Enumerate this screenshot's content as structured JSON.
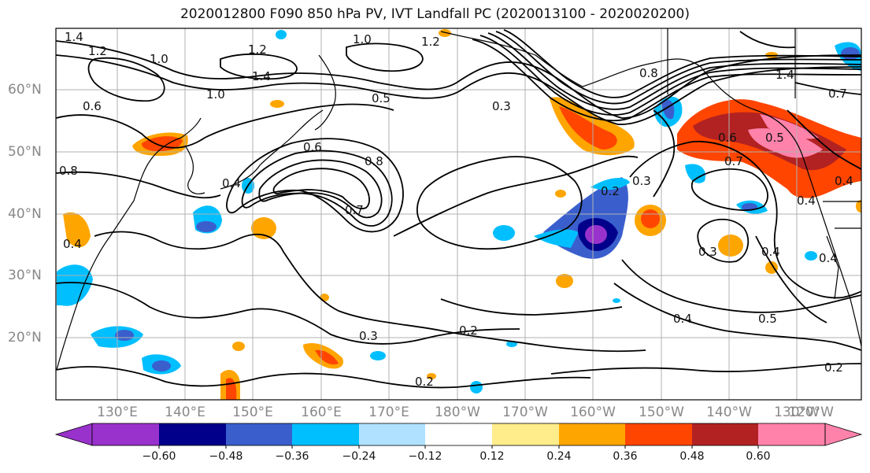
{
  "title": "2020012800 F090 850 hPa PV, IVT Landfall PC (2020013100 - 2020020200)",
  "lat_labels": [
    "60°N",
    "50°N",
    "40°N",
    "30°N",
    "20°N"
  ],
  "lon_labels": [
    "130°E",
    "140°E",
    "150°E",
    "160°E",
    "170°E",
    "180°W",
    "170°W",
    "160°W",
    "150°W",
    "140°W",
    "130°W",
    "120°W"
  ],
  "colorbar": {
    "tick_labels": [
      "−0.60",
      "−0.48",
      "−0.36",
      "−0.24",
      "−0.12",
      "0.12",
      "0.24",
      "0.36",
      "0.48",
      "0.60"
    ],
    "colors": [
      "#9932cc",
      "#00008b",
      "#3a5fcd",
      "#00bfff",
      "#b0e2ff",
      "#ffffff",
      "#ffec8b",
      "#ffa500",
      "#ff4500",
      "#b22222",
      "#ff82ab"
    ]
  },
  "contour_labels": [
    "1.4",
    "1.2",
    "1.0",
    "1.2",
    "1.2",
    "1.0",
    "1.4",
    "1.0",
    "0.6",
    "0.5",
    "0.8",
    "0.6",
    "0.4",
    "0.8",
    "0.4",
    "0.7",
    "0.3",
    "0.2",
    "0.3",
    "0.2",
    "0.2",
    "0.2",
    "0.3",
    "0.5",
    "0.4",
    "0.4",
    "0.7",
    "0.5",
    "0.6",
    "0.4",
    "0.4",
    "0.7",
    "1.4",
    "0.8",
    "0.3",
    "0.4"
  ]
}
